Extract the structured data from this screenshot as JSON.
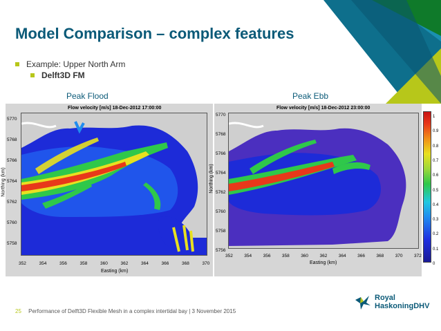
{
  "slide": {
    "title": "Model Comparison – complex features",
    "bullets": [
      {
        "text": "Example: Upper North Arm"
      },
      {
        "text": "Delft3D FM"
      }
    ],
    "panel_labels": [
      "Peak Flood",
      "Peak Ebb"
    ],
    "page_number": "25",
    "footer": "Performance of Delft3D Flexible Mesh in a complex intertidal bay | 3 November 2015",
    "logo": {
      "line1": "Royal",
      "line2": "HaskoningDHV"
    },
    "colors": {
      "title": "#0b5a78",
      "accent": "#b7c71a",
      "corner_teal": "#1a8fb0",
      "corner_green": "#8cb21c"
    }
  },
  "plots": [
    {
      "title": "Flow velocity [m/s] 18-Dec-2012 17:00:00",
      "xlabel": "Easting (km)",
      "ylabel": "Northing (km)",
      "xticks": [
        "352",
        "354",
        "356",
        "358",
        "360",
        "362",
        "364",
        "366",
        "368",
        "370"
      ],
      "yticks": [
        "5770",
        "5768",
        "5766",
        "5764",
        "5762",
        "5760",
        "5758"
      ]
    },
    {
      "title": "Flow velocity [m/s] 18-Dec-2012 23:00:00",
      "xlabel": "Easting (km)",
      "ylabel": "Northing (km)",
      "xticks": [
        "352",
        "354",
        "356",
        "358",
        "360",
        "362",
        "364",
        "366",
        "368",
        "370",
        "372"
      ],
      "yticks": [
        "5770",
        "5768",
        "5766",
        "5764",
        "5762",
        "5760",
        "5758",
        "5756"
      ]
    }
  ],
  "colorbar": {
    "ticks": [
      "1",
      "0.9",
      "0.8",
      "0.7",
      "0.6",
      "0.5",
      "0.4",
      "0.3",
      "0.2",
      "0.1",
      "0"
    ]
  }
}
